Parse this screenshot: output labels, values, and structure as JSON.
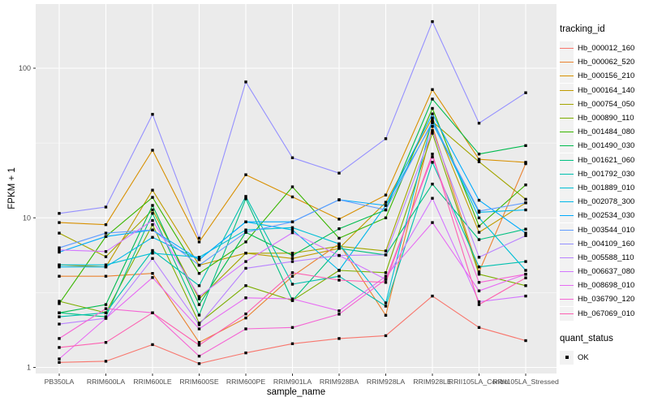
{
  "figure": {
    "y_axis": {
      "title": "FPKM + 1",
      "tick_labels": [
        "1",
        "10",
        "100"
      ]
    },
    "x_axis": {
      "title": "sample_name"
    },
    "panel_bg": "#EBEBEB",
    "grid_color": "#FFFFFF",
    "tick_text_color": "#4D4D4D",
    "point_color": "#000000"
  },
  "legend": {
    "tracking_title": "tracking_id",
    "quant_title": "quant_status",
    "quant_ok_label": "OK"
  },
  "chart_data": {
    "type": "line",
    "title": "",
    "xlabel": "sample_name",
    "ylabel": "FPKM + 1",
    "y_scale": "log10",
    "ylim": [
      1,
      260
    ],
    "y_ticks": [
      1,
      10,
      100
    ],
    "y_minor_ticks": [
      3.1623,
      31.623
    ],
    "grid": true,
    "legend_position": "right",
    "point_shape": "filled-square-black",
    "quant_status_all": "OK",
    "categories": [
      "PB350LA",
      "RRIM600LA",
      "RRIM600LE",
      "RRIM600SE",
      "RRIM600PE",
      "RRIM901LA",
      "RRIM928BA",
      "RRIM928LA",
      "RRIM928LE",
      "RRII105LA_Control",
      "RRII105LA_Stressed"
    ],
    "series": [
      {
        "name": "Hb_000012_160",
        "color": "#F8766D",
        "values": [
          1.08,
          1.1,
          1.42,
          1.06,
          1.25,
          1.44,
          1.56,
          1.63,
          3.0,
          1.85,
          1.51
        ]
      },
      {
        "name": "Hb_000062_520",
        "color": "#EA8331",
        "values": [
          4.07,
          4.07,
          4.25,
          1.47,
          2.14,
          4.07,
          6.7,
          2.23,
          40.8,
          4.35,
          23.0
        ]
      },
      {
        "name": "Hb_000156_210",
        "color": "#D89000",
        "values": [
          9.3,
          9.0,
          28.3,
          6.9,
          19.4,
          13.8,
          9.8,
          14.2,
          72.0,
          24.6,
          23.5
        ]
      },
      {
        "name": "Hb_000164_140",
        "color": "#C09B00",
        "values": [
          4.85,
          4.7,
          15.3,
          4.82,
          5.8,
          5.35,
          6.25,
          12.7,
          46.6,
          8.0,
          12.6
        ]
      },
      {
        "name": "Hb_000754_050",
        "color": "#A3A500",
        "values": [
          7.9,
          5.5,
          11.3,
          2.87,
          5.8,
          5.8,
          6.45,
          6.0,
          44.0,
          23.7,
          13.3
        ]
      },
      {
        "name": "Hb_000890_110",
        "color": "#7CAE00",
        "values": [
          2.77,
          2.32,
          9.0,
          1.98,
          3.52,
          2.8,
          4.45,
          4.3,
          36.8,
          4.2,
          3.52
        ]
      },
      {
        "name": "Hb_001484_080",
        "color": "#39B600",
        "values": [
          2.67,
          7.5,
          13.7,
          4.25,
          6.9,
          16.1,
          7.3,
          10.0,
          53.9,
          8.8,
          16.6
        ]
      },
      {
        "name": "Hb_001490_030",
        "color": "#00BB4E",
        "values": [
          2.32,
          2.63,
          12.1,
          2.63,
          8.0,
          5.6,
          8.45,
          11.3,
          62.2,
          26.7,
          30.4
        ]
      },
      {
        "name": "Hb_001621_060",
        "color": "#00C081",
        "values": [
          2.32,
          2.18,
          10.7,
          2.24,
          13.4,
          2.8,
          6.25,
          5.65,
          16.8,
          7.15,
          8.4
        ]
      },
      {
        "name": "Hb_001792_030",
        "color": "#00C0AF",
        "values": [
          2.18,
          2.32,
          6.05,
          3.52,
          13.9,
          3.6,
          4.07,
          2.57,
          23.5,
          4.7,
          5.1
        ]
      },
      {
        "name": "Hb_001889_010",
        "color": "#00BFD6",
        "values": [
          4.85,
          4.85,
          5.8,
          5.45,
          8.3,
          8.6,
          6.7,
          2.7,
          45.5,
          10.0,
          4.45
        ]
      },
      {
        "name": "Hb_002078_300",
        "color": "#00B7E9",
        "values": [
          4.7,
          4.7,
          7.4,
          5.25,
          9.4,
          8.3,
          4.45,
          12.1,
          43.0,
          10.9,
          11.3
        ]
      },
      {
        "name": "Hb_002534_030",
        "color": "#00ABFD",
        "values": [
          5.9,
          7.5,
          8.3,
          5.25,
          9.4,
          9.4,
          13.2,
          12.1,
          49.5,
          13.1,
          7.9
        ]
      },
      {
        "name": "Hb_003544_010",
        "color": "#619CFF",
        "values": [
          6.3,
          7.9,
          8.3,
          4.82,
          8.0,
          9.4,
          13.2,
          11.3,
          44.0,
          11.1,
          12.6
        ]
      },
      {
        "name": "Hb_004109_160",
        "color": "#9590FF",
        "values": [
          10.7,
          11.8,
          49.2,
          7.3,
          81.0,
          25.2,
          19.9,
          33.8,
          205,
          42.9,
          68.6
        ]
      },
      {
        "name": "Hb_005588_110",
        "color": "#B983FF",
        "values": [
          1.95,
          2.13,
          5.35,
          1.93,
          4.6,
          5.1,
          5.6,
          5.65,
          38.3,
          5.45,
          7.6
        ]
      },
      {
        "name": "Hb_006637_080",
        "color": "#D376FF",
        "values": [
          6.1,
          5.95,
          9.6,
          2.98,
          5.1,
          7.95,
          5.6,
          3.88,
          13.5,
          2.75,
          3.0
        ]
      },
      {
        "name": "Hb_008698_010",
        "color": "#E76BF3",
        "values": [
          1.14,
          2.13,
          3.99,
          1.81,
          2.92,
          2.87,
          2.39,
          4.07,
          9.3,
          3.25,
          4.2
        ]
      },
      {
        "name": "Hb_036790_120",
        "color": "#F564D4",
        "values": [
          1.56,
          2.47,
          2.32,
          1.19,
          1.81,
          1.85,
          2.27,
          3.88,
          25.5,
          3.7,
          4.2
        ]
      },
      {
        "name": "Hb_067069_010",
        "color": "#FD61B1",
        "values": [
          1.36,
          1.47,
          2.32,
          1.41,
          2.28,
          4.3,
          3.83,
          3.7,
          26.7,
          2.63,
          3.97
        ]
      }
    ]
  }
}
